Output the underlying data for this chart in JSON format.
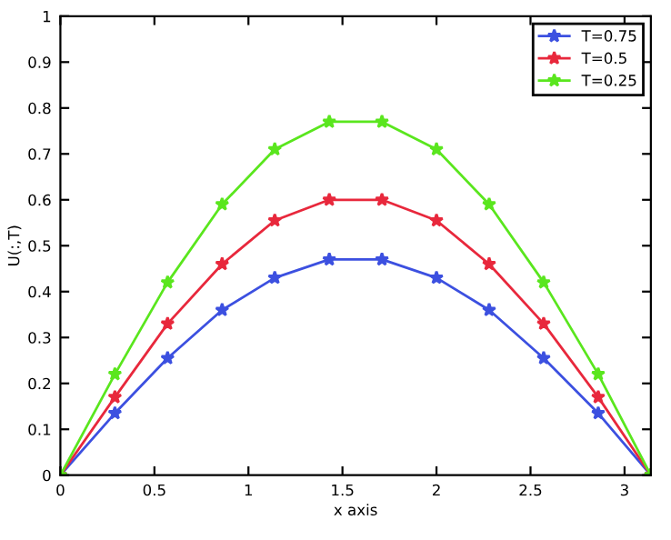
{
  "chart_data": {
    "type": "line",
    "xlabel": "x axis",
    "ylabel": "U(:,T)",
    "x": [
      0,
      0.29,
      0.57,
      0.86,
      1.14,
      1.43,
      1.71,
      2.0,
      2.28,
      2.57,
      2.86,
      3.14
    ],
    "series": [
      {
        "name": "T=0.75",
        "color": "#3c50e0",
        "values": [
          0,
          0.135,
          0.255,
          0.36,
          0.43,
          0.47,
          0.47,
          0.43,
          0.36,
          0.255,
          0.135,
          0
        ]
      },
      {
        "name": "T=0.5",
        "color": "#e8283c",
        "values": [
          0,
          0.17,
          0.33,
          0.46,
          0.555,
          0.6,
          0.6,
          0.555,
          0.46,
          0.33,
          0.17,
          0
        ]
      },
      {
        "name": "T=0.25",
        "color": "#5ae61e",
        "values": [
          0,
          0.22,
          0.42,
          0.59,
          0.71,
          0.77,
          0.77,
          0.71,
          0.59,
          0.42,
          0.22,
          0
        ]
      }
    ],
    "xlim": [
      0,
      3.14
    ],
    "xticks": [
      0,
      0.5,
      1,
      1.5,
      2,
      2.5,
      3
    ],
    "ylim": [
      0,
      1
    ],
    "yticks": [
      0,
      0.1,
      0.2,
      0.3,
      0.4,
      0.5,
      0.6,
      0.7,
      0.8,
      0.9,
      1
    ],
    "grid": false,
    "legend": "top right",
    "marker": "star",
    "line_style": "solid"
  }
}
